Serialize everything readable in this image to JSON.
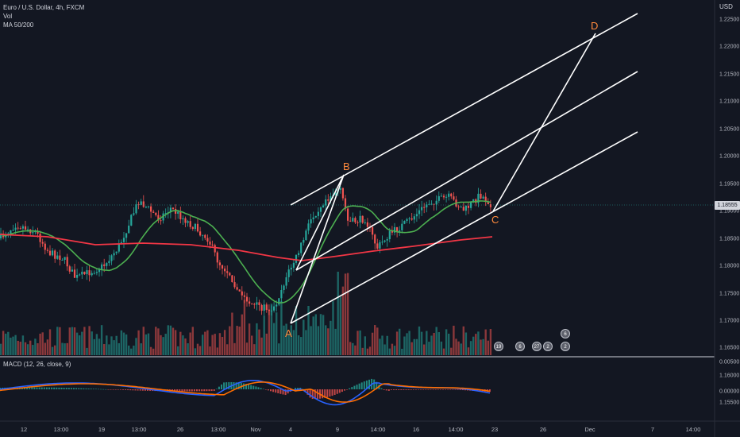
{
  "header": {
    "symbol_line": "Euro / U.S. Dollar, 4h, FXCM",
    "vol_label": "Vol",
    "ma_label": "MA 50/200",
    "currency": "USD"
  },
  "price_axis": {
    "ticks": [
      "1.22500",
      "1.22000",
      "1.21500",
      "1.21000",
      "1.20500",
      "1.20000",
      "1.19500",
      "1.19000",
      "1.18500",
      "1.18000",
      "1.17500",
      "1.17000",
      "1.16500",
      "1.16000",
      "1.15500"
    ],
    "current_price": "1.18555"
  },
  "macd": {
    "label": "MACD (12, 26, close, 9)",
    "ticks": [
      "0.00500",
      "0.00000"
    ]
  },
  "time_axis": {
    "ticks": [
      "12",
      "13:00",
      "19",
      "13:00",
      "26",
      "13:00",
      "Nov",
      "4",
      "9",
      "14:00",
      "16",
      "14:00",
      "23",
      "26",
      "Dec",
      "7",
      "14:00"
    ]
  },
  "pattern_points": {
    "A": "A",
    "B": "B",
    "C": "C",
    "D": "D"
  },
  "events": {
    "e1": "19",
    "e2": "6",
    "e3": "27",
    "e4": "2",
    "e5": "6",
    "e6": "2"
  },
  "colors": {
    "background": "#131722",
    "up": "#26a69a",
    "down": "#ef5350",
    "ma50": "#4caf50",
    "ma200": "#f23645",
    "lines": "#ffffff",
    "pattern_label": "#ff8a3d",
    "macd_line": "#2962ff",
    "signal_line": "#ff6d00"
  }
}
